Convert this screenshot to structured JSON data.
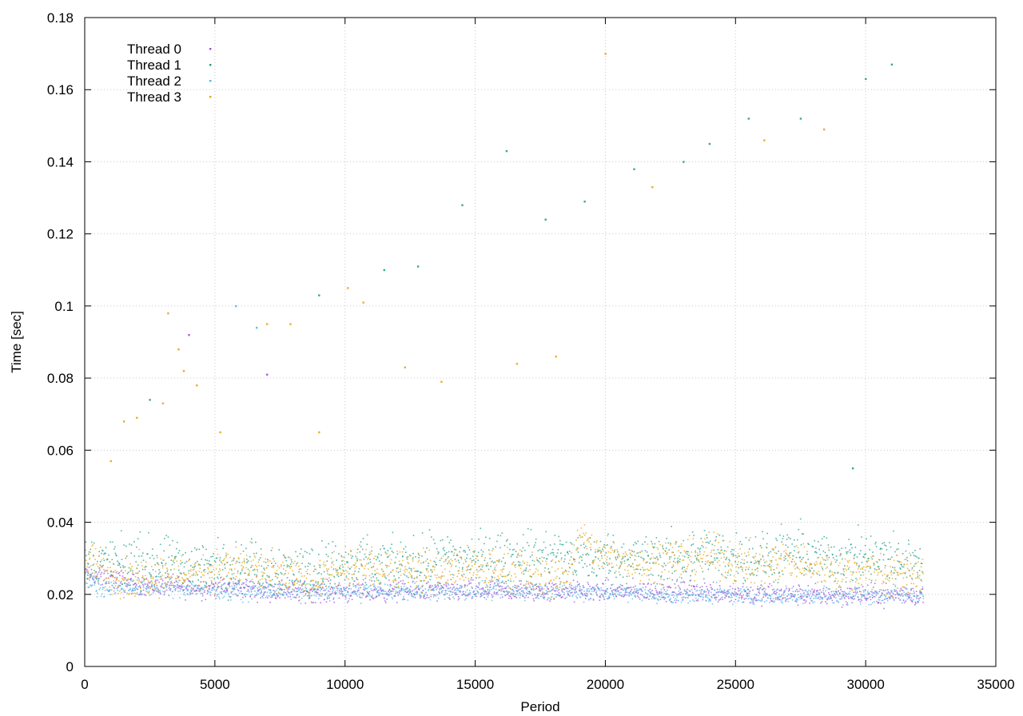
{
  "chart_data": {
    "type": "scatter",
    "title": "",
    "xlabel": "Period",
    "ylabel": "Time [sec]",
    "xlim": [
      0,
      35000
    ],
    "ylim": [
      0,
      0.18
    ],
    "x_ticks": [
      0,
      5000,
      10000,
      15000,
      20000,
      25000,
      30000,
      35000
    ],
    "y_ticks": [
      0,
      0.02,
      0.04,
      0.06,
      0.08,
      0.1,
      0.12,
      0.14,
      0.16,
      0.18
    ],
    "grid": true,
    "legend_position": "top-left",
    "series": [
      {
        "name": "Thread 0",
        "color": "#9b4fd8",
        "marker": "dot",
        "trend": [
          [
            0,
            0.026
          ],
          [
            2000,
            0.023
          ],
          [
            4000,
            0.022
          ],
          [
            6000,
            0.022
          ],
          [
            8000,
            0.021
          ],
          [
            10000,
            0.021
          ],
          [
            12000,
            0.021
          ],
          [
            14000,
            0.021
          ],
          [
            16000,
            0.021
          ],
          [
            18000,
            0.021
          ],
          [
            20000,
            0.021
          ],
          [
            22000,
            0.021
          ],
          [
            24000,
            0.021
          ],
          [
            26000,
            0.02
          ],
          [
            28000,
            0.02
          ],
          [
            30000,
            0.02
          ],
          [
            32200,
            0.02
          ]
        ],
        "outliers": [
          [
            4000,
            0.092
          ],
          [
            7000,
            0.081
          ]
        ]
      },
      {
        "name": "Thread 1",
        "color": "#1f9e89",
        "marker": "x",
        "trend": [
          [
            0,
            0.029
          ],
          [
            2000,
            0.029
          ],
          [
            4000,
            0.028
          ],
          [
            6000,
            0.028
          ],
          [
            8000,
            0.027
          ],
          [
            10000,
            0.028
          ],
          [
            12000,
            0.028
          ],
          [
            14000,
            0.03
          ],
          [
            16000,
            0.03
          ],
          [
            18000,
            0.031
          ],
          [
            19000,
            0.03
          ],
          [
            20000,
            0.03
          ],
          [
            22000,
            0.03
          ],
          [
            24000,
            0.031
          ],
          [
            26000,
            0.03
          ],
          [
            27500,
            0.032
          ],
          [
            28000,
            0.03
          ],
          [
            30000,
            0.03
          ],
          [
            32200,
            0.029
          ]
        ],
        "outliers": [
          [
            2500,
            0.074
          ],
          [
            9000,
            0.103
          ],
          [
            11500,
            0.11
          ],
          [
            12800,
            0.111
          ],
          [
            14500,
            0.128
          ],
          [
            16200,
            0.143
          ],
          [
            17700,
            0.124
          ],
          [
            19200,
            0.129
          ],
          [
            21100,
            0.138
          ],
          [
            23000,
            0.14
          ],
          [
            24000,
            0.145
          ],
          [
            25500,
            0.152
          ],
          [
            27500,
            0.152
          ],
          [
            29500,
            0.055
          ],
          [
            30000,
            0.163
          ],
          [
            31000,
            0.167
          ]
        ]
      },
      {
        "name": "Thread 2",
        "color": "#56b4e9",
        "marker": "dot",
        "trend": [
          [
            0,
            0.024
          ],
          [
            500,
            0.022
          ],
          [
            1000,
            0.022
          ],
          [
            2000,
            0.022
          ],
          [
            4000,
            0.022
          ],
          [
            6000,
            0.021
          ],
          [
            8000,
            0.021
          ],
          [
            10000,
            0.021
          ],
          [
            12000,
            0.021
          ],
          [
            14000,
            0.021
          ],
          [
            16000,
            0.021
          ],
          [
            18000,
            0.021
          ],
          [
            20000,
            0.021
          ],
          [
            22000,
            0.02
          ],
          [
            24000,
            0.02
          ],
          [
            26000,
            0.02
          ],
          [
            28000,
            0.02
          ],
          [
            30000,
            0.02
          ],
          [
            32200,
            0.02
          ]
        ],
        "outliers": [
          [
            5800,
            0.1
          ],
          [
            6600,
            0.094
          ]
        ]
      },
      {
        "name": "Thread 3",
        "color": "#e6a514",
        "marker": "square",
        "trend": [
          [
            0,
            0.029
          ],
          [
            1000,
            0.026
          ],
          [
            2000,
            0.025
          ],
          [
            3000,
            0.026
          ],
          [
            4000,
            0.026
          ],
          [
            5000,
            0.027
          ],
          [
            6000,
            0.028
          ],
          [
            7000,
            0.026
          ],
          [
            8000,
            0.025
          ],
          [
            9000,
            0.024
          ],
          [
            10000,
            0.027
          ],
          [
            11000,
            0.027
          ],
          [
            12000,
            0.028
          ],
          [
            13000,
            0.027
          ],
          [
            14000,
            0.027
          ],
          [
            15000,
            0.027
          ],
          [
            16000,
            0.027
          ],
          [
            17000,
            0.026
          ],
          [
            18000,
            0.025
          ],
          [
            18500,
            0.025
          ],
          [
            19000,
            0.036
          ],
          [
            19500,
            0.032
          ],
          [
            20000,
            0.031
          ],
          [
            21000,
            0.029
          ],
          [
            22000,
            0.03
          ],
          [
            23000,
            0.03
          ],
          [
            24000,
            0.031
          ],
          [
            25000,
            0.029
          ],
          [
            26000,
            0.028
          ],
          [
            27000,
            0.03
          ],
          [
            28000,
            0.028
          ],
          [
            29000,
            0.026
          ],
          [
            30000,
            0.027
          ],
          [
            31000,
            0.026
          ],
          [
            32200,
            0.026
          ]
        ],
        "outliers": [
          [
            1000,
            0.057
          ],
          [
            1500,
            0.068
          ],
          [
            2000,
            0.069
          ],
          [
            3000,
            0.073
          ],
          [
            3200,
            0.098
          ],
          [
            3600,
            0.088
          ],
          [
            3800,
            0.082
          ],
          [
            4300,
            0.078
          ],
          [
            5200,
            0.065
          ],
          [
            7000,
            0.095
          ],
          [
            7900,
            0.095
          ],
          [
            9000,
            0.065
          ],
          [
            10100,
            0.105
          ],
          [
            10700,
            0.101
          ],
          [
            12300,
            0.083
          ],
          [
            13700,
            0.079
          ],
          [
            16600,
            0.084
          ],
          [
            18100,
            0.086
          ],
          [
            20000,
            0.17
          ],
          [
            21800,
            0.133
          ],
          [
            26100,
            0.146
          ],
          [
            28400,
            0.149
          ]
        ]
      }
    ]
  }
}
